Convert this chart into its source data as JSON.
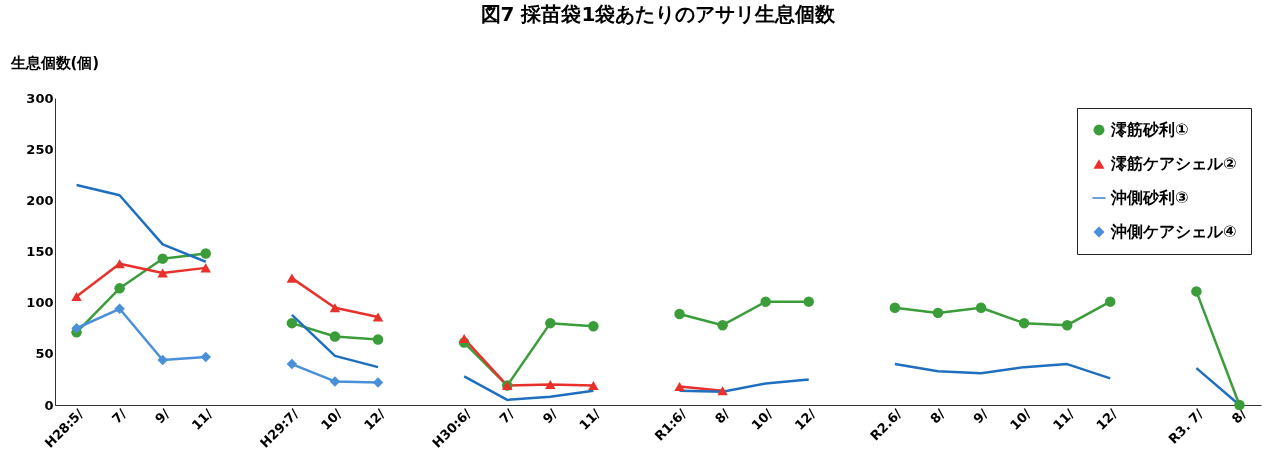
{
  "chart_data": {
    "type": "line",
    "title": "図7 採苗袋1袋あたりのアサリ生息個数",
    "ylabel": "生息個数(個)",
    "categories": [
      "H28:5/",
      "7/",
      "9/",
      "11/",
      null,
      "H29:7/",
      "10/",
      "12/",
      null,
      "H30:6/",
      "7/",
      "9/",
      "11/",
      null,
      "R1:6/",
      "8/",
      "10/",
      "12/",
      null,
      "R2.6/",
      "8/",
      "9/",
      "10/",
      "11/",
      "12/",
      null,
      "R3. 7/",
      "8/"
    ],
    "ylim": [
      0,
      300
    ],
    "yticks": [
      0,
      50,
      100,
      150,
      200,
      250,
      300
    ],
    "legend": "top right",
    "series": [
      {
        "name": "澪筋砂利①",
        "color": "#3a9d3a",
        "marker": "circle",
        "values": [
          71,
          114,
          143,
          148,
          null,
          80,
          67,
          64,
          null,
          61,
          19,
          80,
          77,
          null,
          89,
          78,
          101,
          101,
          null,
          95,
          90,
          95,
          80,
          78,
          101,
          null,
          111,
          0
        ]
      },
      {
        "name": "澪筋ケアシェル②",
        "color": "#e8312a",
        "marker": "triangle",
        "values": [
          106,
          138,
          129,
          134,
          null,
          124,
          95,
          86,
          null,
          65,
          19,
          20,
          19,
          null,
          18,
          14,
          null,
          null,
          null,
          null,
          null,
          null,
          null,
          null,
          null,
          null,
          null,
          null
        ]
      },
      {
        "name": "沖側砂利③",
        "color": "#1f6fc0",
        "marker": "none",
        "values": [
          215,
          205,
          157,
          140,
          null,
          88,
          48,
          37,
          null,
          28,
          5,
          8,
          14,
          null,
          14,
          13,
          21,
          25,
          null,
          40,
          33,
          31,
          37,
          40,
          26,
          null,
          36,
          0
        ]
      },
      {
        "name": "沖側ケアシェル④",
        "color": "#4a90d9",
        "marker": "diamond",
        "values": [
          75,
          94,
          44,
          47,
          null,
          40,
          23,
          22,
          null,
          null,
          null,
          null,
          null,
          null,
          null,
          null,
          null,
          null,
          null,
          null,
          null,
          null,
          null,
          null,
          null,
          null,
          null,
          null
        ]
      }
    ]
  }
}
